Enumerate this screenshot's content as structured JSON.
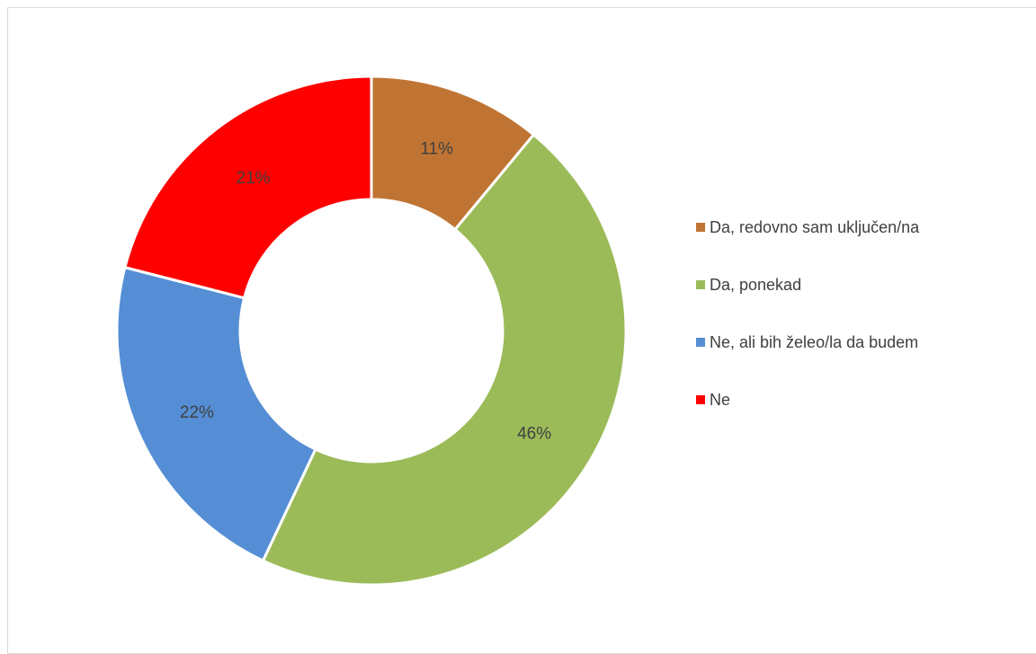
{
  "chart_data": {
    "type": "pie",
    "variant": "doughnut",
    "categories": [
      "Da, redovno sam uključen/na",
      "Da, ponekad",
      "Ne, ali bih želeo/la da budem",
      "Ne"
    ],
    "values": [
      11,
      46,
      22,
      21
    ],
    "value_labels": [
      "11%",
      "46%",
      "22%",
      "21%"
    ],
    "colors": [
      "#C07434",
      "#9BBB59",
      "#558ED5",
      "#FF0000"
    ],
    "start_angle_deg": 0,
    "direction": "clockwise",
    "legend_position": "right",
    "title": ""
  }
}
